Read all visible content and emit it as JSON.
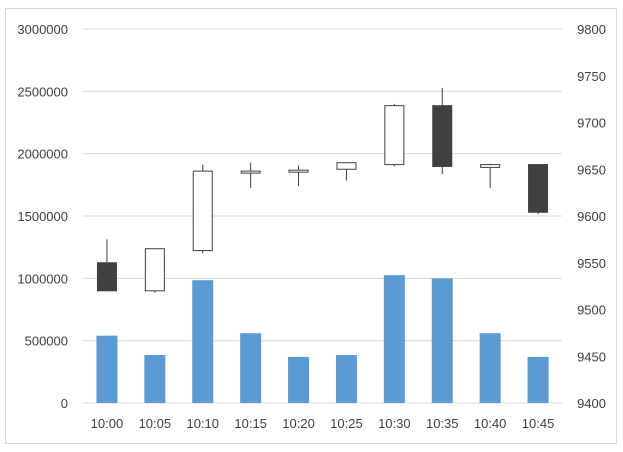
{
  "chart_data": {
    "type": "bar",
    "subtype": "volume-candlestick-combo",
    "categories": [
      "10:00",
      "10:05",
      "10:10",
      "10:15",
      "10:20",
      "10:25",
      "10:30",
      "10:35",
      "10:40",
      "10:45"
    ],
    "series": [
      {
        "axis": "left",
        "type": "bar",
        "color": "#5b9bd5",
        "values": [
          540000,
          385000,
          985000,
          560000,
          370000,
          385000,
          1025000,
          1000000,
          560000,
          370000
        ]
      },
      {
        "axis": "right",
        "type": "candlestick",
        "up_color": "#ffffff",
        "down_color": "#404040",
        "open": [
          9550,
          9520,
          9563,
          9647,
          9647,
          9650,
          9655,
          9718,
          9652,
          9655
        ],
        "high": [
          9575,
          9565,
          9655,
          9657,
          9654,
          9657,
          9720,
          9737,
          9656,
          9655
        ],
        "low": [
          9520,
          9518,
          9560,
          9630,
          9632,
          9638,
          9653,
          9645,
          9630,
          9602
        ],
        "close": [
          9520,
          9565,
          9648,
          9648,
          9649,
          9657,
          9718,
          9653,
          9655,
          9604
        ]
      }
    ],
    "ylim_left": [
      0,
      3000000
    ],
    "yticks_left": [
      "3000000",
      "2500000",
      "2000000",
      "1500000",
      "1000000",
      "500000",
      "0"
    ],
    "ylim_right": [
      9400,
      9800
    ],
    "yticks_right": [
      "9800",
      "9750",
      "9700",
      "9650",
      "9600",
      "9550",
      "9500",
      "9450",
      "9400"
    ],
    "grid": true,
    "legend": "none",
    "title": "",
    "xlabel": "",
    "ylabel": ""
  }
}
